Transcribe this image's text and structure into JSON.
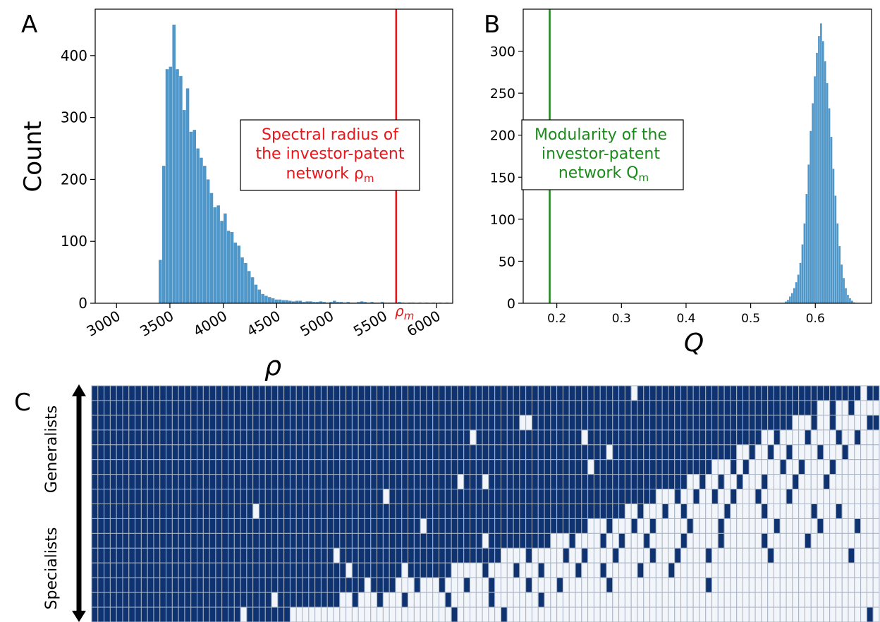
{
  "chart_data": [
    {
      "panel": "A",
      "type": "bar",
      "xlabel": "ρ",
      "ylabel": "Count",
      "xlim": [
        2800,
        6150
      ],
      "ylim": [
        0,
        475
      ],
      "xticks": [
        "3000",
        "3500",
        "4000",
        "4500",
        "5000",
        "5500",
        "6000"
      ],
      "xtick_values": [
        3000,
        3500,
        4000,
        4500,
        5000,
        5500,
        6000
      ],
      "yticks": [
        "0",
        "100",
        "200",
        "300",
        "400"
      ],
      "ytick_values": [
        0,
        100,
        200,
        300,
        400
      ],
      "xtick_rotation": "30 degrees",
      "grid": false,
      "bar_color": "#4f96c9",
      "bins": {
        "start": 3395,
        "width": 32,
        "counts": [
          70,
          222,
          378,
          382,
          450,
          378,
          367,
          312,
          347,
          277,
          280,
          250,
          235,
          222,
          200,
          178,
          155,
          158,
          133,
          145,
          117,
          115,
          98,
          93,
          74,
          65,
          52,
          42,
          30,
          22,
          15,
          12,
          10,
          8,
          6,
          6,
          5,
          5,
          4,
          3,
          4,
          4,
          2,
          3,
          3,
          2,
          2,
          3,
          2,
          1,
          2,
          4,
          2,
          2,
          1,
          2,
          1,
          1,
          2,
          3,
          2,
          1,
          2,
          1,
          1,
          2,
          1,
          1,
          1,
          1,
          2,
          1,
          0,
          1,
          1,
          0,
          1,
          0,
          1,
          0,
          1,
          0,
          1,
          0,
          1
        ]
      },
      "marker": {
        "label": "ρm",
        "value": 5620,
        "color": "#e8161a"
      },
      "annotation": {
        "lines": [
          "Spectral radius of",
          "the investor-patent",
          "network ρm"
        ],
        "color": "#e8161a"
      }
    },
    {
      "panel": "B",
      "type": "bar",
      "xlabel": "Q",
      "ylabel": "",
      "xlim": [
        0.148,
        0.687
      ],
      "ylim": [
        0,
        350
      ],
      "xticks": [
        "0.2",
        "0.3",
        "0.4",
        "0.5",
        "0.6"
      ],
      "xtick_values": [
        0.2,
        0.3,
        0.4,
        0.5,
        0.6
      ],
      "yticks": [
        "0",
        "50",
        "100",
        "150",
        "200",
        "250",
        "300"
      ],
      "ytick_values": [
        0,
        50,
        100,
        150,
        200,
        250,
        300
      ],
      "grid": false,
      "bar_color": "#4f96c9",
      "bins": {
        "start": 0.553,
        "width": 0.0032,
        "counts": [
          2,
          4,
          8,
          12,
          18,
          25,
          34,
          48,
          70,
          95,
          130,
          165,
          205,
          238,
          270,
          298,
          318,
          333,
          312,
          288,
          262,
          232,
          198,
          160,
          128,
          95,
          68,
          46,
          30,
          18,
          10,
          6,
          3,
          1
        ]
      },
      "marker": {
        "value": 0.189,
        "color": "#1a8a1a"
      },
      "annotation": {
        "lines": [
          "Modularity of the",
          "investor-patent",
          "network Qm"
        ],
        "color": "#1a8a1a"
      }
    },
    {
      "panel": "C",
      "type": "heatmap",
      "rows": 16,
      "cols": 127,
      "filled_color": "#0f3370",
      "empty_color": "#f2f5fa",
      "grid_color": "#a9b4c4",
      "y_axis_labels": [
        "Generalists",
        "Specialists"
      ],
      "row_fill_extents": [
        127,
        117,
        113,
        108,
        104,
        100,
        96,
        91,
        86,
        80,
        74,
        66,
        58,
        49,
        40,
        32
      ],
      "holes": [
        [
          0,
          87
        ],
        [
          0,
          124
        ],
        [
          2,
          69
        ],
        [
          2,
          70
        ],
        [
          3,
          61
        ],
        [
          3,
          79
        ],
        [
          4,
          83
        ],
        [
          5,
          80
        ],
        [
          6,
          59
        ],
        [
          6,
          63
        ],
        [
          7,
          47
        ],
        [
          8,
          26
        ],
        [
          9,
          53
        ],
        [
          10,
          63
        ],
        [
          11,
          39
        ],
        [
          12,
          41
        ],
        [
          12,
          50
        ],
        [
          13,
          44
        ],
        [
          14,
          29
        ],
        [
          15,
          24
        ]
      ],
      "extras": [
        [
          1,
          119
        ],
        [
          1,
          122
        ],
        [
          2,
          116
        ],
        [
          2,
          119
        ],
        [
          2,
          125
        ],
        [
          2,
          126
        ],
        [
          3,
          110
        ],
        [
          3,
          115
        ],
        [
          3,
          120
        ],
        [
          3,
          123
        ],
        [
          4,
          106
        ],
        [
          4,
          109
        ],
        [
          4,
          112
        ],
        [
          4,
          117
        ],
        [
          4,
          121
        ],
        [
          5,
          103
        ],
        [
          5,
          105
        ],
        [
          5,
          111
        ],
        [
          5,
          114
        ],
        [
          5,
          119
        ],
        [
          6,
          98
        ],
        [
          6,
          101
        ],
        [
          6,
          104
        ],
        [
          6,
          108
        ],
        [
          6,
          113
        ],
        [
          6,
          118
        ],
        [
          7,
          94
        ],
        [
          7,
          97
        ],
        [
          7,
          100
        ],
        [
          7,
          103
        ],
        [
          7,
          107
        ],
        [
          7,
          112
        ],
        [
          8,
          88
        ],
        [
          8,
          92
        ],
        [
          8,
          95
        ],
        [
          8,
          102
        ],
        [
          8,
          108
        ],
        [
          8,
          116
        ],
        [
          8,
          120
        ],
        [
          9,
          83
        ],
        [
          9,
          87
        ],
        [
          9,
          90
        ],
        [
          9,
          96
        ],
        [
          9,
          101
        ],
        [
          9,
          110
        ],
        [
          9,
          117
        ],
        [
          9,
          123
        ],
        [
          10,
          77
        ],
        [
          10,
          82
        ],
        [
          10,
          85
        ],
        [
          10,
          89
        ],
        [
          10,
          95
        ],
        [
          10,
          101
        ],
        [
          10,
          108
        ],
        [
          10,
          115
        ],
        [
          11,
          70
        ],
        [
          11,
          76
        ],
        [
          11,
          79
        ],
        [
          11,
          84
        ],
        [
          11,
          90
        ],
        [
          11,
          94
        ],
        [
          11,
          99
        ],
        [
          11,
          109
        ],
        [
          11,
          122
        ],
        [
          12,
          63
        ],
        [
          12,
          68
        ],
        [
          12,
          72
        ],
        [
          12,
          78
        ],
        [
          12,
          82
        ],
        [
          12,
          88
        ],
        [
          12,
          93
        ],
        [
          13,
          52
        ],
        [
          13,
          56
        ],
        [
          13,
          60
        ],
        [
          13,
          64
        ],
        [
          13,
          70
        ],
        [
          13,
          75
        ],
        [
          13,
          83
        ],
        [
          13,
          99
        ],
        [
          14,
          42
        ],
        [
          14,
          46
        ],
        [
          14,
          50
        ],
        [
          14,
          57
        ],
        [
          14,
          64
        ],
        [
          14,
          72
        ],
        [
          15,
          26
        ],
        [
          15,
          58
        ],
        [
          15,
          66
        ],
        [
          15,
          125
        ]
      ]
    }
  ],
  "panel_labels": {
    "a": "A",
    "b": "B",
    "c": "C"
  }
}
